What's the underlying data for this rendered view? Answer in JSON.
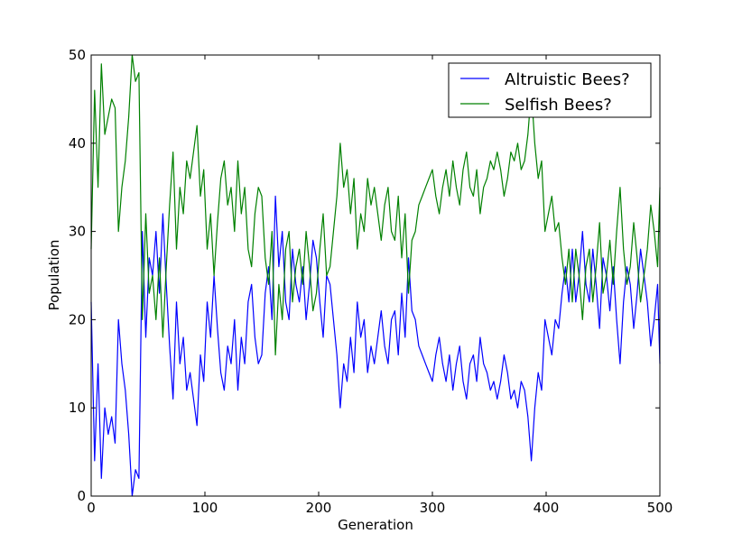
{
  "chart_data": {
    "type": "line",
    "title": "",
    "xlabel": "Generation",
    "ylabel": "Population",
    "xlim": [
      0,
      500
    ],
    "ylim": [
      0,
      50
    ],
    "xticks": [
      "0",
      "100",
      "200",
      "300",
      "400",
      "500"
    ],
    "yticks": [
      "0",
      "10",
      "20",
      "30",
      "40",
      "50"
    ],
    "grid": false,
    "legend_position": "top-right",
    "series": [
      {
        "name": "Altruistic Bees?",
        "color": "#0000ff",
        "x": [
          0,
          3,
          6,
          9,
          12,
          15,
          18,
          21,
          24,
          27,
          30,
          33,
          36,
          39,
          42,
          45,
          48,
          51,
          54,
          57,
          60,
          63,
          66,
          69,
          72,
          75,
          78,
          81,
          84,
          87,
          90,
          93,
          96,
          99,
          102,
          105,
          108,
          111,
          114,
          117,
          120,
          123,
          126,
          129,
          132,
          135,
          138,
          141,
          144,
          147,
          150,
          153,
          156,
          159,
          162,
          165,
          168,
          171,
          174,
          177,
          180,
          183,
          186,
          189,
          192,
          195,
          198,
          201,
          204,
          207,
          210,
          213,
          216,
          219,
          222,
          225,
          228,
          231,
          234,
          237,
          240,
          243,
          246,
          249,
          252,
          255,
          258,
          261,
          264,
          267,
          270,
          273,
          276,
          279,
          282,
          285,
          288,
          291,
          294,
          297,
          300,
          303,
          306,
          309,
          312,
          315,
          318,
          321,
          324,
          327,
          330,
          333,
          336,
          339,
          342,
          345,
          348,
          351,
          354,
          357,
          360,
          363,
          366,
          369,
          372,
          375,
          378,
          381,
          384,
          387,
          390,
          393,
          396,
          399,
          402,
          405,
          408,
          411,
          414,
          417,
          420,
          423,
          426,
          429,
          432,
          435,
          438,
          441,
          444,
          447,
          450,
          453,
          456,
          459,
          462,
          465,
          468,
          471,
          474,
          477,
          480,
          483,
          486,
          489,
          492,
          495,
          498,
          500
        ],
        "values": [
          22,
          4,
          15,
          2,
          10,
          7,
          9,
          6,
          20,
          15,
          12,
          7,
          0,
          3,
          2,
          30,
          18,
          27,
          25,
          30,
          23,
          32,
          24,
          17,
          11,
          22,
          15,
          18,
          12,
          14,
          11,
          8,
          16,
          13,
          22,
          18,
          25,
          19,
          14,
          12,
          17,
          15,
          20,
          12,
          18,
          15,
          22,
          24,
          18,
          15,
          16,
          23,
          26,
          20,
          34,
          26,
          30,
          22,
          20,
          28,
          24,
          22,
          26,
          20,
          24,
          29,
          27,
          22,
          18,
          25,
          24,
          20,
          16,
          10,
          15,
          13,
          18,
          14,
          22,
          18,
          20,
          14,
          17,
          15,
          18,
          21,
          17,
          15,
          20,
          21,
          16,
          23,
          18,
          27,
          21,
          20,
          17,
          16,
          15,
          14,
          13,
          16,
          18,
          15,
          13,
          16,
          12,
          15,
          17,
          13,
          11,
          15,
          16,
          13,
          18,
          15,
          14,
          12,
          13,
          11,
          13,
          16,
          14,
          11,
          12,
          10,
          13,
          12,
          9,
          4,
          10,
          14,
          12,
          20,
          18,
          16,
          20,
          19,
          23,
          26,
          22,
          28,
          22,
          25,
          30,
          24,
          22,
          28,
          24,
          19,
          27,
          25,
          21,
          26,
          20,
          15,
          22,
          26,
          24,
          19,
          23,
          28,
          25,
          22,
          17,
          20,
          24,
          15
        ]
      },
      {
        "name": "Selfish Bees?",
        "color": "#008000",
        "x": [
          0,
          3,
          6,
          9,
          12,
          15,
          18,
          21,
          24,
          27,
          30,
          33,
          36,
          39,
          42,
          45,
          48,
          51,
          54,
          57,
          60,
          63,
          66,
          69,
          72,
          75,
          78,
          81,
          84,
          87,
          90,
          93,
          96,
          99,
          102,
          105,
          108,
          111,
          114,
          117,
          120,
          123,
          126,
          129,
          132,
          135,
          138,
          141,
          144,
          147,
          150,
          153,
          156,
          159,
          162,
          165,
          168,
          171,
          174,
          177,
          180,
          183,
          186,
          189,
          192,
          195,
          198,
          201,
          204,
          207,
          210,
          213,
          216,
          219,
          222,
          225,
          228,
          231,
          234,
          237,
          240,
          243,
          246,
          249,
          252,
          255,
          258,
          261,
          264,
          267,
          270,
          273,
          276,
          279,
          282,
          285,
          288,
          291,
          294,
          297,
          300,
          303,
          306,
          309,
          312,
          315,
          318,
          321,
          324,
          327,
          330,
          333,
          336,
          339,
          342,
          345,
          348,
          351,
          354,
          357,
          360,
          363,
          366,
          369,
          372,
          375,
          378,
          381,
          384,
          387,
          390,
          393,
          396,
          399,
          402,
          405,
          408,
          411,
          414,
          417,
          420,
          423,
          426,
          429,
          432,
          435,
          438,
          441,
          444,
          447,
          450,
          453,
          456,
          459,
          462,
          465,
          468,
          471,
          474,
          477,
          480,
          483,
          486,
          489,
          492,
          495,
          498,
          500
        ],
        "values": [
          28,
          46,
          35,
          49,
          41,
          43,
          45,
          44,
          30,
          35,
          38,
          43,
          50,
          47,
          48,
          20,
          32,
          23,
          25,
          20,
          27,
          18,
          26,
          33,
          39,
          28,
          35,
          32,
          38,
          36,
          39,
          42,
          34,
          37,
          28,
          32,
          25,
          31,
          36,
          38,
          33,
          35,
          30,
          38,
          32,
          35,
          28,
          26,
          32,
          35,
          34,
          27,
          24,
          30,
          16,
          24,
          20,
          28,
          30,
          22,
          26,
          28,
          24,
          30,
          26,
          21,
          23,
          28,
          32,
          25,
          26,
          30,
          34,
          40,
          35,
          37,
          32,
          36,
          28,
          32,
          30,
          36,
          33,
          35,
          32,
          29,
          33,
          35,
          30,
          29,
          34,
          27,
          32,
          23,
          29,
          30,
          33,
          34,
          35,
          36,
          37,
          34,
          32,
          35,
          37,
          34,
          38,
          35,
          33,
          37,
          39,
          35,
          34,
          37,
          32,
          35,
          36,
          38,
          37,
          39,
          37,
          34,
          36,
          39,
          38,
          40,
          37,
          38,
          41,
          46,
          40,
          36,
          38,
          30,
          32,
          34,
          30,
          31,
          27,
          24,
          28,
          22,
          28,
          25,
          20,
          26,
          28,
          22,
          26,
          31,
          23,
          25,
          29,
          24,
          30,
          35,
          28,
          24,
          26,
          31,
          27,
          22,
          25,
          28,
          33,
          30,
          26,
          35
        ]
      }
    ]
  }
}
